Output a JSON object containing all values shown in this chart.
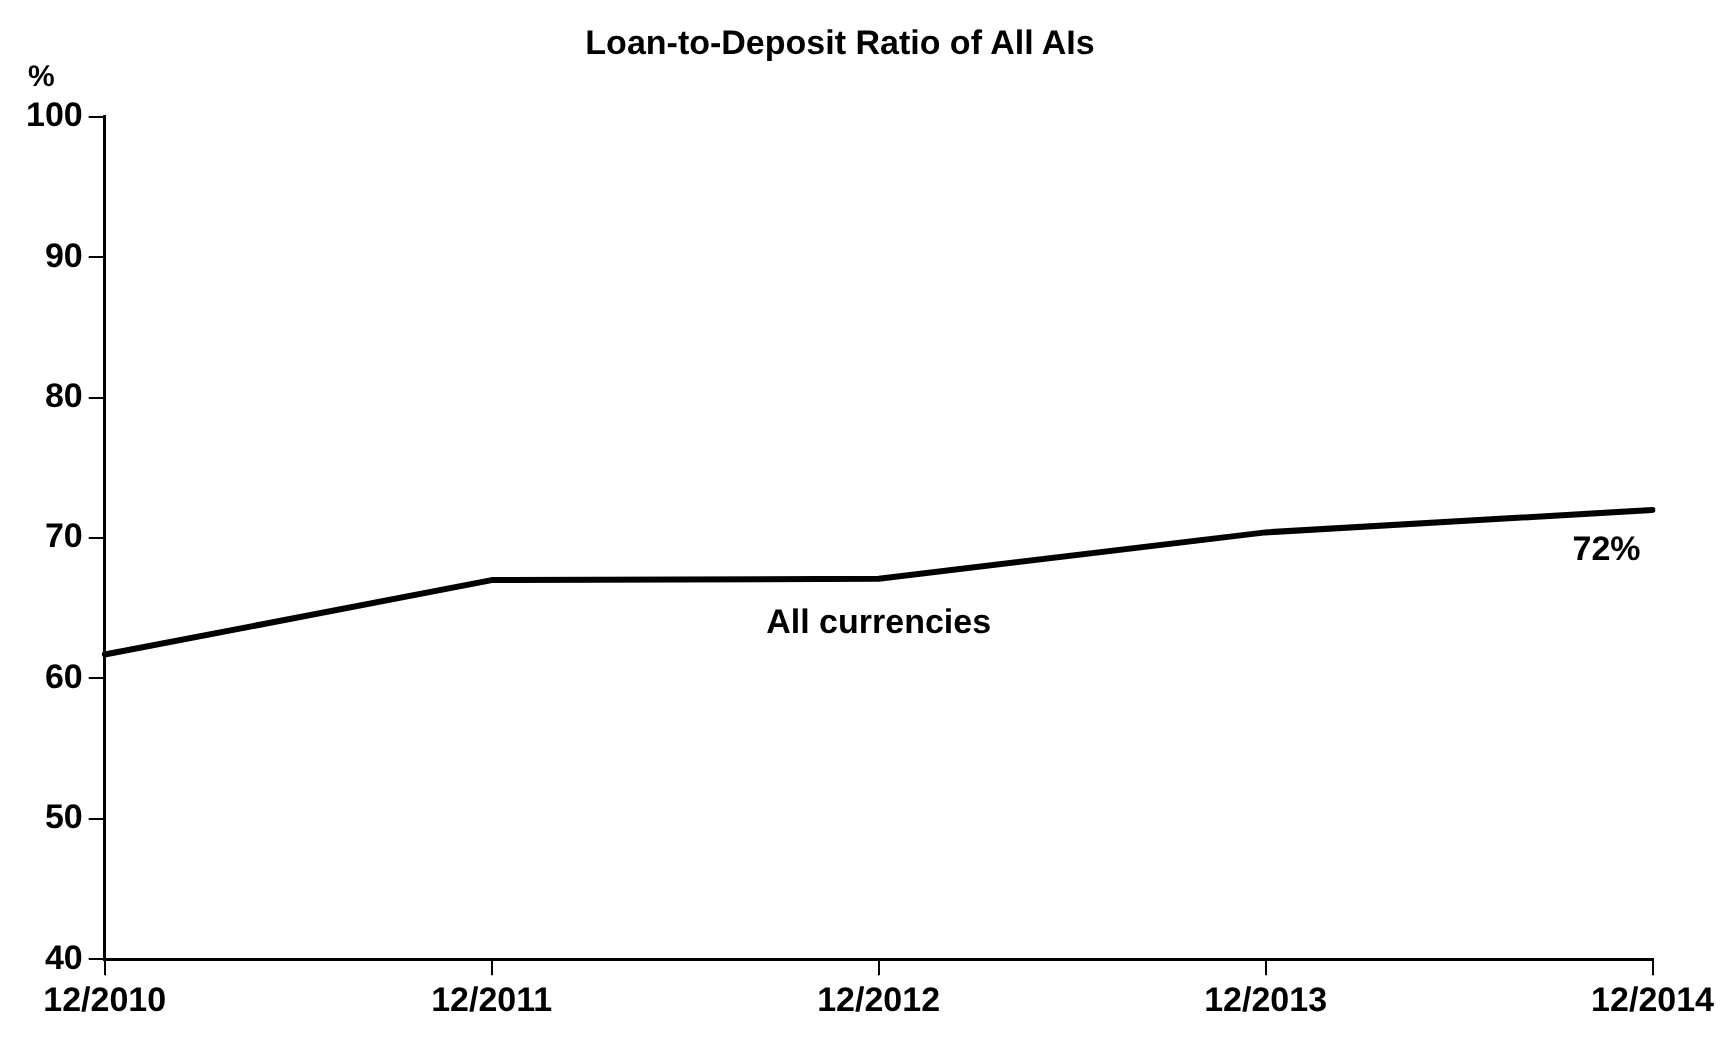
{
  "chart_data": {
    "type": "line",
    "title": "Loan-to-Deposit Ratio of All AIs",
    "ylabel": "%",
    "categories": [
      "12/2010",
      "12/2011",
      "12/2012",
      "12/2013",
      "12/2014"
    ],
    "series": [
      {
        "name": "All currencies",
        "color": "#000000",
        "values": [
          61.7,
          67.0,
          67.1,
          70.4,
          72.0
        ],
        "value_labels": [
          null,
          null,
          null,
          null,
          "72%"
        ]
      }
    ],
    "ylim": [
      40,
      100
    ],
    "yticks": [
      40,
      50,
      60,
      70,
      80,
      90,
      100
    ],
    "grid": false,
    "legend": false,
    "marker": "none",
    "line_style": "solid"
  }
}
